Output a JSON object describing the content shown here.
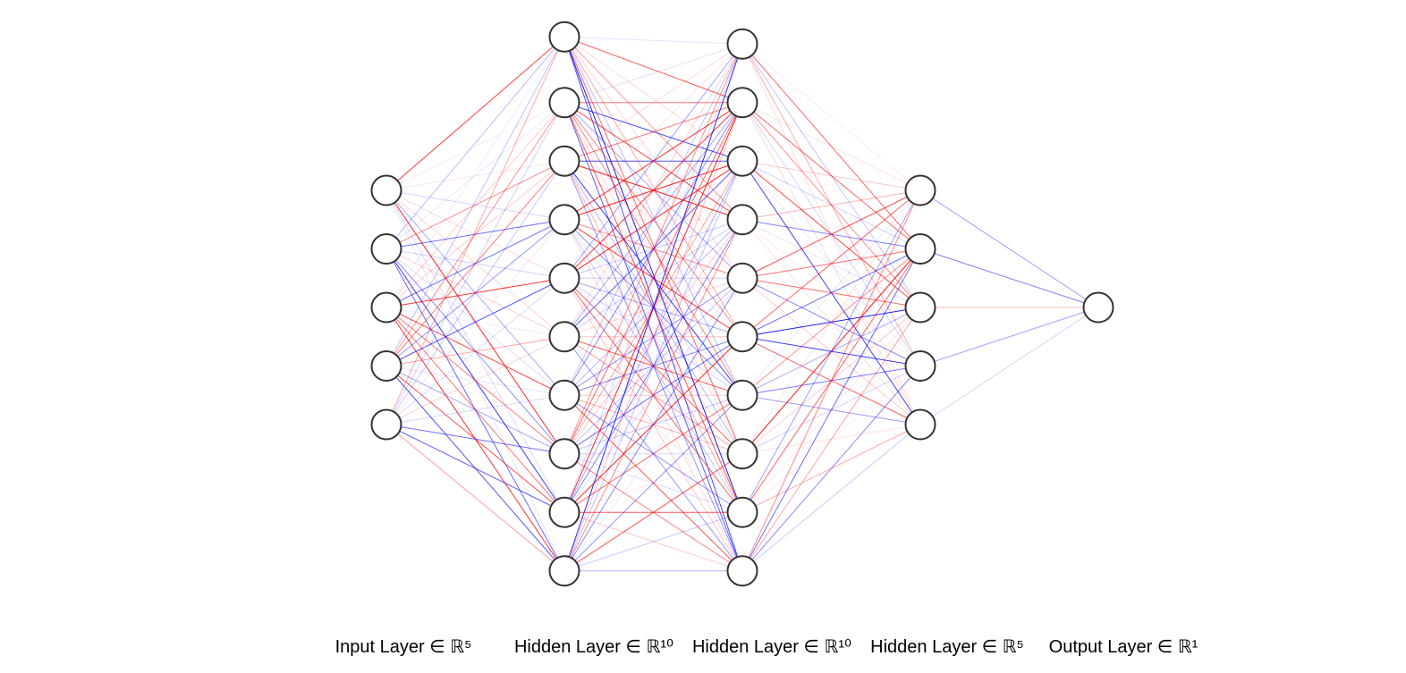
{
  "diagram": {
    "type": "neural-network",
    "colors": {
      "positive_weight": "#ff0000",
      "negative_weight": "#0000ff",
      "node_fill": "#ffffff",
      "node_stroke": "#333333"
    },
    "layers": [
      {
        "label": "Input Layer ∈ ℝ⁵",
        "size": 5
      },
      {
        "label": "Hidden Layer ∈ ℝ¹⁰",
        "size": 10
      },
      {
        "label": "Hidden Layer ∈ ℝ¹⁰",
        "size": 10
      },
      {
        "label": "Hidden Layer ∈ ℝ⁵",
        "size": 5
      },
      {
        "label": "Output Layer ∈ ℝ¹",
        "size": 1
      }
    ]
  }
}
